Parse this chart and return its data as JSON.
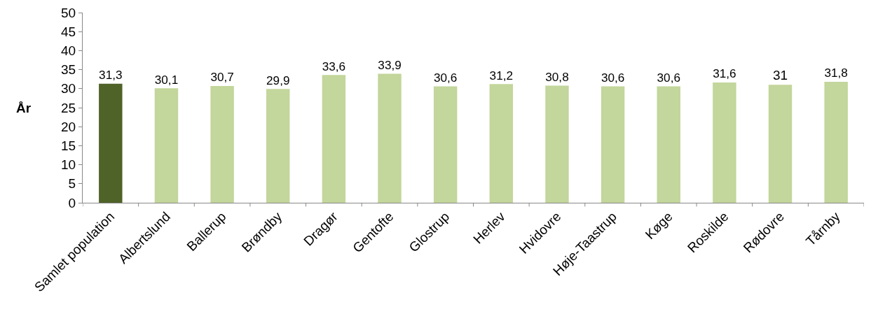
{
  "chart_data": {
    "type": "bar",
    "ylabel": "År",
    "categories": [
      "Samlet population",
      "Albertslund",
      "Ballerup",
      "Brøndby",
      "Dragør",
      "Gentofte",
      "Glostrup",
      "Herlev",
      "Hvidovre",
      "Høje-Taastrup",
      "Køge",
      "Roskilde",
      "Rødovre",
      "Tårnby"
    ],
    "values": [
      31.3,
      30.1,
      30.7,
      29.9,
      33.6,
      33.9,
      30.6,
      31.2,
      30.8,
      30.6,
      30.6,
      31.6,
      31,
      31.8
    ],
    "value_labels": [
      "31,3",
      "30,1",
      "30,7",
      "29,9",
      "33,6",
      "33,9",
      "30,6",
      "31,2",
      "30,8",
      "30,6",
      "30,6",
      "31,6",
      "31",
      "31,8"
    ],
    "colors": [
      "#4f6228",
      "#c3d69b",
      "#c3d69b",
      "#c3d69b",
      "#c3d69b",
      "#c3d69b",
      "#c3d69b",
      "#c3d69b",
      "#c3d69b",
      "#c3d69b",
      "#c3d69b",
      "#c3d69b",
      "#c3d69b",
      "#c3d69b"
    ],
    "ylim": [
      0,
      50
    ],
    "yticks": [
      0,
      5,
      10,
      15,
      20,
      25,
      30,
      35,
      40,
      45,
      50
    ],
    "grid": false
  }
}
